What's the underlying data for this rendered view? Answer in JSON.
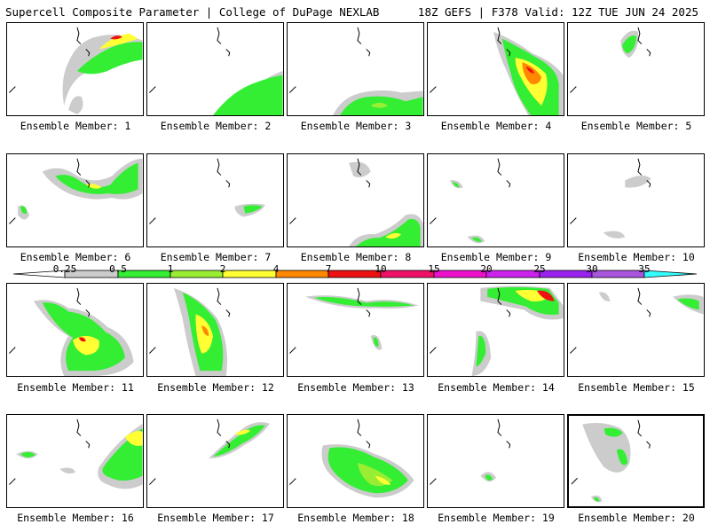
{
  "header": {
    "left": "Supercell Composite Parameter | College of DuPage NEXLAB",
    "right": "18Z GEFS | F378 Valid: 12Z TUE JUN 24 2025"
  },
  "members": [
    {
      "label": "Ensemble Member: 1"
    },
    {
      "label": "Ensemble Member: 2"
    },
    {
      "label": "Ensemble Member: 3"
    },
    {
      "label": "Ensemble Member: 4"
    },
    {
      "label": "Ensemble Member: 5"
    },
    {
      "label": "Ensemble Member: 6"
    },
    {
      "label": "Ensemble Member: 7"
    },
    {
      "label": "Ensemble Member: 8"
    },
    {
      "label": "Ensemble Member: 9"
    },
    {
      "label": "Ensemble Member: 10"
    },
    {
      "label": "Ensemble Member: 11"
    },
    {
      "label": "Ensemble Member: 12"
    },
    {
      "label": "Ensemble Member: 13"
    },
    {
      "label": "Ensemble Member: 14"
    },
    {
      "label": "Ensemble Member: 15"
    },
    {
      "label": "Ensemble Member: 16"
    },
    {
      "label": "Ensemble Member: 17"
    },
    {
      "label": "Ensemble Member: 18"
    },
    {
      "label": "Ensemble Member: 19"
    },
    {
      "label": "Ensemble Member: 20"
    }
  ],
  "legend": {
    "labels": [
      "0.25",
      "0.5",
      "1",
      "2",
      "4",
      "7",
      "10",
      "15",
      "20",
      "25",
      "30",
      "35"
    ],
    "colors": [
      "#ffffff",
      "#cccccc",
      "#33ee33",
      "#99ee33",
      "#ffff33",
      "#ff8800",
      "#ee1111",
      "#ee1166",
      "#ee11cc",
      "#cc22ee",
      "#9922ee",
      "#aa55dd",
      "#33ffff"
    ]
  }
}
